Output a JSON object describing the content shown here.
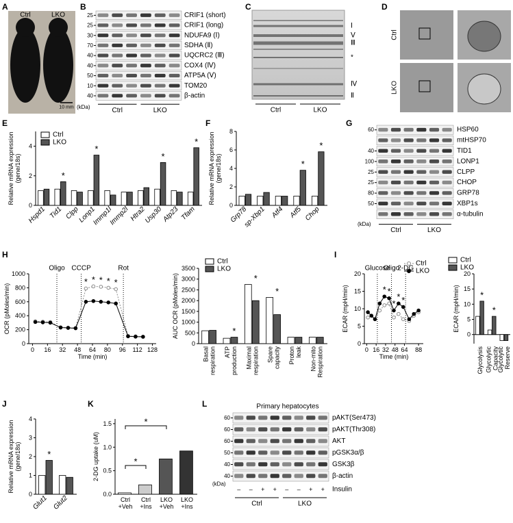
{
  "panel_letters": [
    "A",
    "B",
    "C",
    "D",
    "E",
    "F",
    "G",
    "H",
    "I",
    "J",
    "K",
    "L"
  ],
  "photo_A": {
    "labels": [
      "Ctrl",
      "LKO"
    ],
    "scale": "10 mm"
  },
  "blot_B": {
    "rows": [
      {
        "label": "CRIF1 (short)",
        "mw": "25"
      },
      {
        "label": "CRIF1 (long)",
        "mw": "25"
      },
      {
        "label": "NDUFA9 (Ⅰ)",
        "mw": "30"
      },
      {
        "label": "SDHA (Ⅱ)",
        "mw": "70"
      },
      {
        "label": "UQCRC2 (Ⅲ)",
        "mw": "40"
      },
      {
        "label": "COX4 (Ⅳ)",
        "mw": "40"
      },
      {
        "label": "ATP5A (Ⅴ)",
        "mw": "50"
      },
      {
        "label": "TOM20",
        "mw": "10"
      },
      {
        "label": "β-actin",
        "mw": "40"
      }
    ],
    "unit": "(kDa)",
    "groups": [
      "Ctrl",
      "LKO"
    ]
  },
  "blot_C": {
    "labels": [
      "Ⅰ",
      "Ⅴ",
      "Ⅲ",
      "*",
      "Ⅳ",
      "Ⅱ"
    ],
    "groups": [
      "Ctrl",
      "LKO"
    ]
  },
  "em_D": {
    "labels": [
      "Ctrl",
      "LKO"
    ]
  },
  "blot_G": {
    "rows": [
      {
        "label": "HSP60",
        "mw": "60"
      },
      {
        "label": "mtHSP70"
      },
      {
        "label": "TID1",
        "mw": "40"
      },
      {
        "label": "LONP1",
        "mw": "100"
      },
      {
        "label": "CLPP",
        "mw": "25"
      },
      {
        "label": "CHOP",
        "mw": "25"
      },
      {
        "label": "GRP78",
        "mw": "80"
      },
      {
        "label": "XBP1s",
        "mw": "50"
      },
      {
        "label": "α-tubulin"
      }
    ],
    "unit": "(kDa)",
    "groups": [
      "Ctrl",
      "LKO"
    ]
  },
  "blot_L": {
    "title": "Primary hepatocytes",
    "rows": [
      {
        "label": "pAKT(Ser473)",
        "mw": "60"
      },
      {
        "label": "pAKT(Thr308)",
        "mw": "60"
      },
      {
        "label": "AKT",
        "mw": "60"
      },
      {
        "label": "pGSK3α/β",
        "mw": "50"
      },
      {
        "label": "GSK3β",
        "mw": "40"
      },
      {
        "label": "β-actin",
        "mw": "40"
      }
    ],
    "unit": "(kDa)",
    "treatment_label": "Insulin",
    "treatment": [
      "–",
      "–",
      "+",
      "+",
      "–",
      "–",
      "+",
      "+"
    ],
    "groups": [
      "Ctrl",
      "LKO"
    ]
  },
  "chart_data": [
    {
      "type": "bar",
      "y_label": [
        "Relative mRNA expression",
        "(gene/18s)"
      ],
      "categories": [
        "Hspd1",
        "Tid1",
        "Clpp",
        "Lonp1",
        "Immp1l",
        "Immp2l",
        "Htra2",
        "Usp30",
        "Atp23",
        "Tfam"
      ],
      "series": [
        {
          "name": "Ctrl",
          "color": "#ffffff",
          "values": [
            1.0,
            1.1,
            1.0,
            1.0,
            1.0,
            0.9,
            1.0,
            1.1,
            1.0,
            0.9
          ]
        },
        {
          "name": "LKO",
          "color": "#555555",
          "values": [
            1.1,
            1.6,
            0.9,
            3.4,
            0.7,
            0.9,
            1.2,
            2.9,
            0.9,
            3.9
          ]
        }
      ],
      "ylim": [
        0,
        5
      ],
      "yticks": [
        0,
        2,
        4
      ],
      "star_color": "#c0392b",
      "significant": [
        {
          "text": "*",
          "category": "Tid1"
        },
        {
          "text": "*",
          "category": "Lonp1"
        },
        {
          "text": "*",
          "category": "Usp30"
        },
        {
          "text": "*",
          "category": "Tfam"
        }
      ]
    },
    {
      "type": "bar",
      "y_label": [
        "Relative mRNA expression",
        "(gene/18s)"
      ],
      "categories": [
        "Grp78",
        "sp-Xbp1",
        "Atf4",
        "Atf5",
        "Chop"
      ],
      "series": [
        {
          "name": "Ctrl",
          "color": "#ffffff",
          "values": [
            1.0,
            1.0,
            1.0,
            1.0,
            1.0
          ]
        },
        {
          "name": "LKO",
          "color": "#555555",
          "values": [
            1.2,
            1.4,
            1.0,
            3.8,
            5.8
          ]
        }
      ],
      "ylim": [
        0,
        8
      ],
      "yticks": [
        0,
        2,
        4,
        6,
        8
      ],
      "star_color": "#c0392b",
      "significant": [
        {
          "text": "*",
          "category": "Atf5"
        },
        {
          "text": "*",
          "category": "Chop"
        }
      ]
    },
    {
      "type": "line",
      "y_label": "OCR (pMoles/min)",
      "x_label": "Time (min)",
      "x": [
        3,
        11,
        19,
        30,
        38,
        46,
        57,
        65,
        73,
        81,
        89,
        102,
        110,
        118
      ],
      "series": [
        {
          "name": "Ctrl",
          "color": "#888888",
          "line_style": "dashed",
          "values": [
            320,
            315,
            310,
            235,
            230,
            225,
            790,
            820,
            815,
            800,
            780,
            110,
            105,
            100
          ]
        },
        {
          "name": "LKO",
          "color": "#000000",
          "line_style": "solid",
          "values": [
            310,
            305,
            300,
            230,
            225,
            220,
            600,
            610,
            600,
            590,
            575,
            105,
            100,
            98
          ]
        }
      ],
      "xlim": [
        -4,
        132
      ],
      "xticks": [
        0,
        16,
        32,
        48,
        64,
        80,
        96,
        112,
        128
      ],
      "ylim": [
        0,
        1000
      ],
      "yticks": [
        0,
        200,
        400,
        600,
        800,
        1000
      ],
      "injections": [
        {
          "label": "Oligo",
          "x": 26
        },
        {
          "label": "CCCP",
          "x": 52
        },
        {
          "label": "Rot",
          "x": 97
        }
      ],
      "star_color": "#c0392b",
      "significant": [
        {
          "text": "*",
          "x": 57
        },
        {
          "text": "*",
          "x": 65
        },
        {
          "text": "*",
          "x": 73
        },
        {
          "text": "*",
          "x": 81
        },
        {
          "text": "*",
          "x": 89
        }
      ]
    },
    {
      "type": "bar",
      "y_label": "AUC OCR (pMoles/min)",
      "categories": [
        [
          "Basal",
          "respiration"
        ],
        [
          "ATP",
          "production"
        ],
        [
          "Maximal",
          "respiration"
        ],
        [
          "Spare",
          "capacity"
        ],
        [
          "Proton",
          "leak"
        ],
        [
          "Non-mito",
          "Respiration"
        ]
      ],
      "series": [
        {
          "name": "Ctrl",
          "color": "#ffffff",
          "values": [
            600,
            250,
            2750,
            2150,
            300,
            300
          ]
        },
        {
          "name": "LKO",
          "color": "#555555",
          "values": [
            620,
            300,
            2000,
            1350,
            300,
            300
          ]
        }
      ],
      "ylim": [
        0,
        3500
      ],
      "yticks": [
        0,
        500,
        1000,
        1500,
        2000,
        2500,
        3000,
        3500
      ],
      "star_color": "#c0392b",
      "significant": [
        {
          "text": "*",
          "category": [
            "ATP",
            "production"
          ]
        },
        {
          "text": "*",
          "category": [
            "Maximal",
            "respiration"
          ]
        },
        {
          "text": "*",
          "category": [
            "Spare",
            "capacity"
          ]
        }
      ]
    },
    {
      "type": "line",
      "y_label": "ECAR (mpH/min)",
      "x_label": "Time (min)",
      "x": [
        2,
        8,
        14,
        22,
        30,
        38,
        46,
        54,
        62,
        72,
        80,
        88
      ],
      "series": [
        {
          "name": "Ctrl",
          "color": "#888888",
          "line_style": "dashed",
          "values": [
            7.5,
            8,
            7,
            9.5,
            11,
            11.5,
            7.5,
            8.5,
            7,
            6.5,
            8,
            9
          ]
        },
        {
          "name": "LKO",
          "color": "#000000",
          "line_style": "solid",
          "values": [
            9,
            8,
            7,
            11.5,
            13.5,
            13,
            9.5,
            11.5,
            10.5,
            7,
            8.5,
            9.5
          ]
        }
      ],
      "xlim": [
        -4,
        96
      ],
      "xticks": [
        0,
        16,
        32,
        48,
        64,
        88
      ],
      "ylim": [
        0,
        20
      ],
      "yticks": [
        0,
        5,
        10,
        15,
        20
      ],
      "injections": [
        {
          "label": "Glucose",
          "x": 18
        },
        {
          "label": "Oligo",
          "x": 42
        },
        {
          "label": "2-DG",
          "x": 66
        }
      ],
      "star_color": "#c0392b",
      "significant": [
        {
          "text": "*",
          "x": 30
        },
        {
          "text": "*",
          "x": 38
        },
        {
          "text": "*",
          "x": 46
        },
        {
          "text": "*",
          "x": 54
        },
        {
          "text": "*",
          "x": 62
        }
      ]
    },
    {
      "type": "bar",
      "y_label": "ECAR (mpH/min)",
      "categories": [
        "Glycolysis",
        [
          "Glycolytic",
          "Capacity"
        ],
        [
          "Glycolytic",
          "Reserve"
        ]
      ],
      "series": [
        {
          "name": "Ctrl",
          "color": "#ffffff",
          "values": [
            6,
            1.5,
            -2
          ]
        },
        {
          "name": "LKO",
          "color": "#555555",
          "values": [
            11,
            6,
            -2
          ]
        }
      ],
      "ylim": [
        -3,
        20
      ],
      "yticks": [
        0,
        5,
        10,
        15,
        20
      ],
      "star_color": "#c0392b",
      "significant": [
        {
          "text": "*",
          "category": "Glycolysis"
        },
        {
          "text": "*",
          "category": [
            "Glycolytic",
            "Capacity"
          ]
        }
      ]
    },
    {
      "type": "bar",
      "y_label": [
        "Relative mRNA expression",
        "(gene/18s)"
      ],
      "categories": [
        "Glut1",
        "Glut2"
      ],
      "series": [
        {
          "name": "Ctrl",
          "color": "#ffffff",
          "values": [
            1.0,
            1.0
          ]
        },
        {
          "name": "LKO",
          "color": "#555555",
          "values": [
            1.8,
            0.9
          ]
        }
      ],
      "ylim": [
        0,
        4
      ],
      "yticks": [
        0,
        1,
        2,
        3,
        4
      ],
      "star_color": "#c0392b",
      "significant": [
        {
          "text": "*",
          "category": "Glut1"
        }
      ]
    },
    {
      "type": "bar",
      "y_label": "2-DG uptake (uM)",
      "categories": [
        [
          "Ctrl",
          "+Veh"
        ],
        [
          "Ctrl",
          "+Ins"
        ],
        [
          "LKO",
          "+Veh"
        ],
        [
          "LKO",
          "+Ins"
        ]
      ],
      "series": [
        {
          "colors": [
            "#ffffff",
            "#cccccc",
            "#555555",
            "#333333"
          ],
          "values": [
            0.03,
            0.2,
            0.75,
            0.92
          ]
        }
      ],
      "ylim": [
        0,
        1.6
      ],
      "yticks": [
        {
          "value": 0,
          "label": "0.0"
        },
        {
          "value": 0.5,
          "label": "0.5"
        },
        {
          "value": 1,
          "label": "1.0"
        },
        {
          "value": 1.5,
          "label": "1.5"
        }
      ],
      "star_color": "#c0392b",
      "comparisons": [
        {
          "text": "*",
          "between": [
            0,
            1
          ]
        },
        {
          "text": "*",
          "between": [
            0,
            2
          ]
        }
      ]
    }
  ]
}
